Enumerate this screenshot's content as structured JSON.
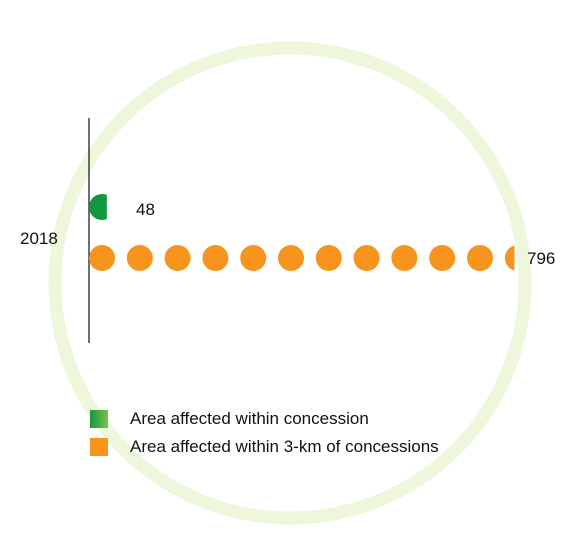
{
  "colors": {
    "ring": "#eef6dc",
    "within_concession": "#12973f",
    "within_3km": "#f7941d",
    "axis": "#222222",
    "text": "#111111"
  },
  "chart_data": {
    "type": "bar",
    "categories": [
      "2018"
    ],
    "series": [
      {
        "name": "Area affected within concession",
        "values": [
          48
        ],
        "value_label": "48"
      },
      {
        "name": "Area affected within 3-km of concessions",
        "values": [
          796
        ],
        "value_label": "796"
      }
    ],
    "unit_per_circle": 70,
    "legend": "bottom-left",
    "title": "",
    "xlabel": "",
    "ylabel": ""
  }
}
